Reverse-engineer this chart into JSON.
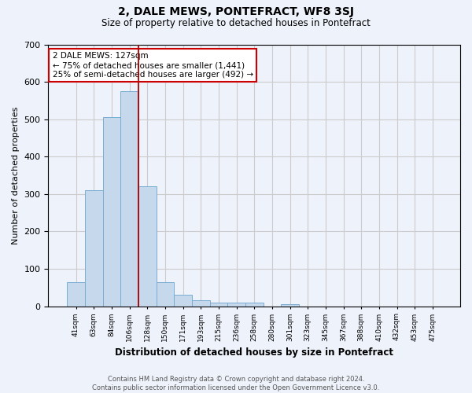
{
  "title": "2, DALE MEWS, PONTEFRACT, WF8 3SJ",
  "subtitle": "Size of property relative to detached houses in Pontefract",
  "xlabel": "Distribution of detached houses by size in Pontefract",
  "ylabel": "Number of detached properties",
  "footer_line1": "Contains HM Land Registry data © Crown copyright and database right 2024.",
  "footer_line2": "Contains public sector information licensed under the Open Government Licence v3.0.",
  "bin_labels": [
    "41sqm",
    "63sqm",
    "84sqm",
    "106sqm",
    "128sqm",
    "150sqm",
    "171sqm",
    "193sqm",
    "215sqm",
    "236sqm",
    "258sqm",
    "280sqm",
    "301sqm",
    "323sqm",
    "345sqm",
    "367sqm",
    "388sqm",
    "410sqm",
    "432sqm",
    "453sqm",
    "475sqm"
  ],
  "bar_values": [
    65,
    310,
    505,
    575,
    320,
    65,
    30,
    17,
    10,
    10,
    10,
    0,
    5,
    0,
    0,
    0,
    0,
    0,
    0,
    0,
    0
  ],
  "bar_color": "#c6d9ec",
  "bar_edge_color": "#7aadd4",
  "property_line_color": "#aa0000",
  "annotation_line1": "2 DALE MEWS: 127sqm",
  "annotation_line2": "← 75% of detached houses are smaller (1,441)",
  "annotation_line3": "25% of semi-detached houses are larger (492) →",
  "annotation_box_color": "#ffffff",
  "annotation_box_edge": "#cc0000",
  "ylim": [
    0,
    700
  ],
  "yticks": [
    0,
    100,
    200,
    300,
    400,
    500,
    600,
    700
  ],
  "grid_color": "#cccccc",
  "background_color": "#eef2fb",
  "property_bin_index": 4
}
